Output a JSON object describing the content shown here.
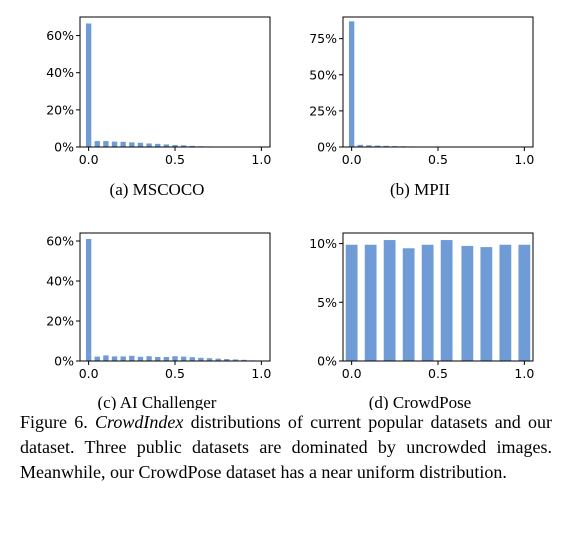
{
  "colors": {
    "bar": "#6f9bd6",
    "axis": "#000000"
  },
  "chart_data": [
    {
      "type": "bar",
      "title": "(a) MSCOCO",
      "xlim": [
        -0.05,
        1.05
      ],
      "ylim": [
        0,
        70
      ],
      "xticks": [
        "0.0",
        "0.5",
        "1.0"
      ],
      "yticks": [
        "0%",
        "20%",
        "40%",
        "60%"
      ],
      "ytick_values": [
        0,
        20,
        40,
        60
      ],
      "x": [
        0.0,
        0.05,
        0.1,
        0.15,
        0.2,
        0.25,
        0.3,
        0.35,
        0.4,
        0.45,
        0.5,
        0.55,
        0.6,
        0.65,
        0.7,
        0.75,
        0.8,
        0.85,
        0.9,
        0.95,
        1.0
      ],
      "values": [
        66.5,
        3.2,
        3.2,
        2.9,
        2.8,
        2.5,
        2.3,
        1.9,
        1.7,
        1.4,
        1.1,
        0.9,
        0.6,
        0.4,
        0.3,
        0.2,
        0.1,
        0.1,
        0.05,
        0.05,
        0.0
      ]
    },
    {
      "type": "bar",
      "title": "(b) MPII",
      "xlim": [
        -0.05,
        1.05
      ],
      "ylim": [
        0,
        90
      ],
      "xticks": [
        "0.0",
        "0.5",
        "1.0"
      ],
      "yticks": [
        "0%",
        "25%",
        "50%",
        "75%"
      ],
      "ytick_values": [
        0,
        25,
        50,
        75
      ],
      "x": [
        0.0,
        0.05,
        0.1,
        0.15,
        0.2,
        0.25,
        0.3,
        0.35,
        0.4,
        0.45,
        0.5,
        0.55,
        0.6,
        0.65,
        0.7,
        0.75,
        0.8,
        0.85,
        0.9,
        0.95,
        1.0
      ],
      "values": [
        87.0,
        1.5,
        1.2,
        1.0,
        0.8,
        0.6,
        0.5,
        0.4,
        0.3,
        0.2,
        0.15,
        0.1,
        0.1,
        0.05,
        0.05,
        0.0,
        0.0,
        0.0,
        0.0,
        0.0,
        0.0
      ]
    },
    {
      "type": "bar",
      "title": "(c) AI Challenger",
      "xlim": [
        -0.05,
        1.05
      ],
      "ylim": [
        0,
        64
      ],
      "xticks": [
        "0.0",
        "0.5",
        "1.0"
      ],
      "yticks": [
        "0%",
        "20%",
        "40%",
        "60%"
      ],
      "ytick_values": [
        0,
        20,
        40,
        60
      ],
      "x": [
        0.0,
        0.05,
        0.1,
        0.15,
        0.2,
        0.25,
        0.3,
        0.35,
        0.4,
        0.45,
        0.5,
        0.55,
        0.6,
        0.65,
        0.7,
        0.75,
        0.8,
        0.85,
        0.9,
        0.95,
        1.0
      ],
      "values": [
        61.0,
        2.2,
        2.8,
        2.3,
        2.3,
        2.6,
        2.1,
        2.4,
        2.0,
        2.0,
        2.4,
        2.2,
        1.9,
        1.6,
        1.4,
        1.2,
        1.0,
        0.8,
        0.6,
        0.3,
        0.1
      ]
    },
    {
      "type": "bar",
      "title": "(d) CrowdPose",
      "xlim": [
        -0.05,
        1.05
      ],
      "ylim": [
        0,
        10.9
      ],
      "xticks": [
        "0.0",
        "0.5",
        "1.0"
      ],
      "yticks": [
        "0%",
        "5%",
        "10%"
      ],
      "ytick_values": [
        0,
        5,
        10
      ],
      "x": [
        0.0,
        0.11,
        0.22,
        0.33,
        0.44,
        0.55,
        0.67,
        0.78,
        0.89,
        1.0
      ],
      "values": [
        9.9,
        9.9,
        10.3,
        9.6,
        9.9,
        10.3,
        9.8,
        9.7,
        9.9,
        9.9
      ]
    }
  ],
  "caption": {
    "prefix": "Figure 6.",
    "math": "CrowdIndex",
    "text": "distributions of current popular datasets and our dataset.  Three public datasets are dominated by uncrowded images. Meanwhile, our CrowdPose dataset has a near uniform distribution."
  }
}
